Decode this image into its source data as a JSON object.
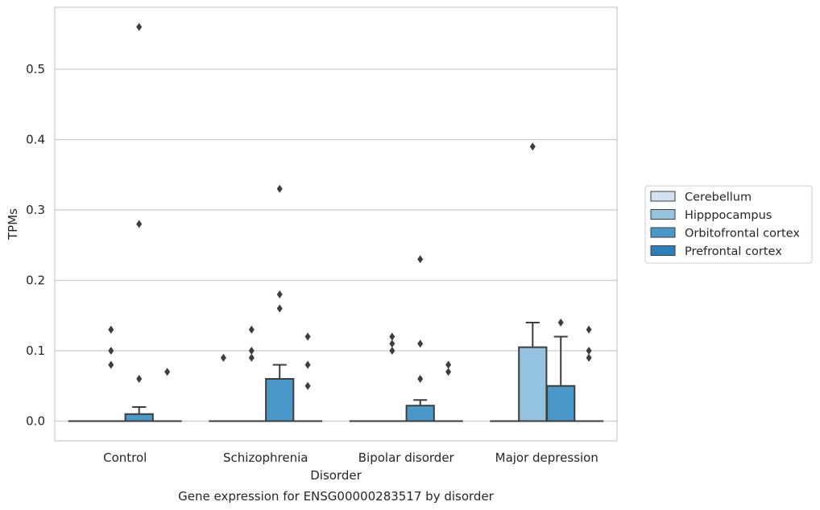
{
  "chart_data": {
    "type": "boxplot",
    "caption": "Gene expression for ENSG00000283517 by disorder",
    "xlabel": "Disorder",
    "ylabel": "TPMs",
    "ylim": [
      -0.028,
      0.588
    ],
    "yticks": [
      0.0,
      0.1,
      0.2,
      0.3,
      0.4,
      0.5
    ],
    "ytick_labels": [
      "0.0",
      "0.1",
      "0.2",
      "0.3",
      "0.4",
      "0.5"
    ],
    "grid": "horizontal",
    "legend_position": "right",
    "categories": [
      "Control",
      "Schizophrenia",
      "Bipolar disorder",
      "Major depression"
    ],
    "series": [
      {
        "name": "Cerebellum",
        "color": "#d0e1f2",
        "boxes": [
          {
            "q1": 0,
            "median": 0,
            "q3": 0,
            "whislo": 0,
            "whishi": 0,
            "fliers": []
          },
          {
            "q1": 0,
            "median": 0,
            "q3": 0,
            "whislo": 0,
            "whishi": 0,
            "fliers": [
              0.09
            ]
          },
          {
            "q1": 0,
            "median": 0,
            "q3": 0,
            "whislo": 0,
            "whishi": 0,
            "fliers": []
          },
          {
            "q1": 0,
            "median": 0,
            "q3": 0,
            "whislo": 0,
            "whishi": 0,
            "fliers": []
          }
        ]
      },
      {
        "name": "Hipppocampus",
        "color": "#94c4df",
        "boxes": [
          {
            "q1": 0,
            "median": 0,
            "q3": 0,
            "whislo": 0,
            "whishi": 0,
            "fliers": [
              0.13,
              0.1,
              0.08
            ]
          },
          {
            "q1": 0,
            "median": 0,
            "q3": 0,
            "whislo": 0,
            "whishi": 0,
            "fliers": [
              0.13,
              0.1,
              0.09
            ]
          },
          {
            "q1": 0,
            "median": 0,
            "q3": 0,
            "whislo": 0,
            "whishi": 0,
            "fliers": [
              0.12,
              0.11,
              0.1
            ]
          },
          {
            "q1": 0,
            "median": 0,
            "q3": 0.105,
            "whislo": 0,
            "whishi": 0.14,
            "fliers": [
              0.39
            ]
          }
        ]
      },
      {
        "name": "Orbitofrontal cortex",
        "color": "#4a98c9",
        "boxes": [
          {
            "q1": 0,
            "median": 0,
            "q3": 0.01,
            "whislo": 0,
            "whishi": 0.02,
            "fliers": [
              0.56,
              0.28,
              0.06
            ]
          },
          {
            "q1": 0,
            "median": 0,
            "q3": 0.06,
            "whislo": 0,
            "whishi": 0.08,
            "fliers": [
              0.33,
              0.18,
              0.16
            ]
          },
          {
            "q1": 0,
            "median": 0,
            "q3": 0.022,
            "whislo": 0,
            "whishi": 0.03,
            "fliers": [
              0.23,
              0.11,
              0.06
            ]
          },
          {
            "q1": 0,
            "median": 0,
            "q3": 0.05,
            "whislo": 0,
            "whishi": 0.12,
            "fliers": [
              0.14
            ]
          }
        ]
      },
      {
        "name": "Prefrontal cortex",
        "color": "#2e7ebc",
        "boxes": [
          {
            "q1": 0,
            "median": 0,
            "q3": 0,
            "whislo": 0,
            "whishi": 0,
            "fliers": [
              0.07
            ]
          },
          {
            "q1": 0,
            "median": 0,
            "q3": 0,
            "whislo": 0,
            "whishi": 0,
            "fliers": [
              0.12,
              0.08,
              0.05
            ]
          },
          {
            "q1": 0,
            "median": 0,
            "q3": 0,
            "whislo": 0,
            "whishi": 0,
            "fliers": [
              0.08,
              0.07
            ]
          },
          {
            "q1": 0,
            "median": 0,
            "q3": 0,
            "whislo": 0,
            "whishi": 0,
            "fliers": [
              0.13,
              0.1,
              0.09
            ]
          }
        ]
      }
    ]
  }
}
